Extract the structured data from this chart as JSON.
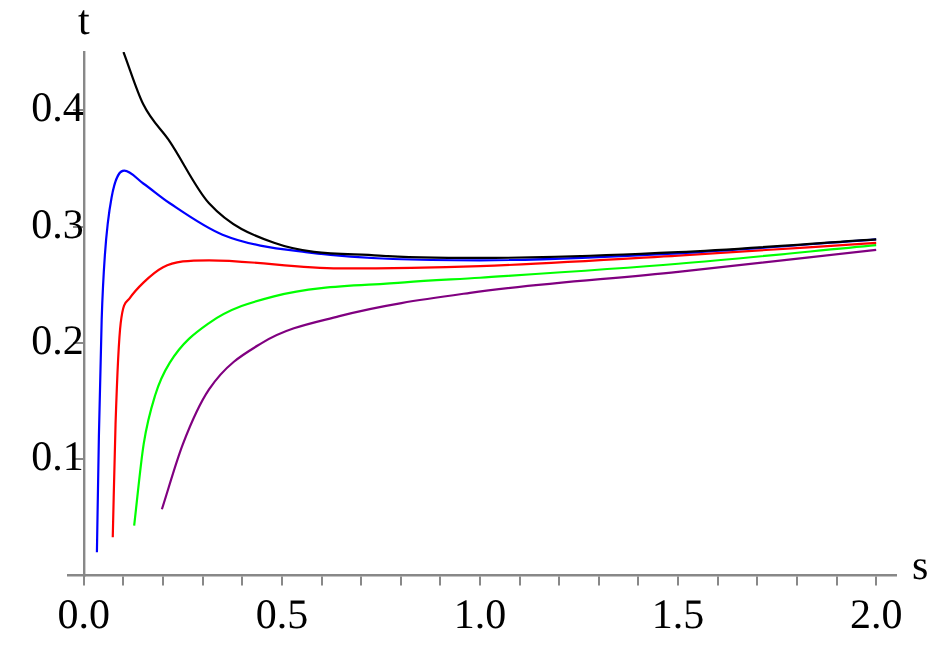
{
  "chart_data": {
    "type": "line",
    "xlabel": "s",
    "ylabel": "t",
    "xlim": [
      -0.04,
      2.05
    ],
    "ylim": [
      0,
      0.45
    ],
    "xticks": [
      {
        "value": 0,
        "label": "0.0"
      },
      {
        "value": 0.1,
        "label": null
      },
      {
        "value": 0.2,
        "label": null
      },
      {
        "value": 0.3,
        "label": null
      },
      {
        "value": 0.4,
        "label": null
      },
      {
        "value": 0.5,
        "label": "0.5"
      },
      {
        "value": 0.6,
        "label": null
      },
      {
        "value": 0.7,
        "label": null
      },
      {
        "value": 0.8,
        "label": null
      },
      {
        "value": 0.9,
        "label": null
      },
      {
        "value": 1,
        "label": "1.0"
      },
      {
        "value": 1.1,
        "label": null
      },
      {
        "value": 1.2,
        "label": null
      },
      {
        "value": 1.3,
        "label": null
      },
      {
        "value": 1.4,
        "label": null
      },
      {
        "value": 1.5,
        "label": "1.5"
      },
      {
        "value": 1.6,
        "label": null
      },
      {
        "value": 1.7,
        "label": null
      },
      {
        "value": 1.8,
        "label": null
      },
      {
        "value": 1.9,
        "label": null
      },
      {
        "value": 2,
        "label": "2.0"
      }
    ],
    "yticks": [
      0.1,
      0.2,
      0.3,
      0.4
    ],
    "grid": false,
    "legend": false,
    "marker": "none",
    "line_style": "solid",
    "series": [
      {
        "color": "#000000",
        "x": [
          0.1,
          0.15,
          0.217,
          0.316,
          0.48,
          0.745,
          1.0,
          1.5,
          2.0
        ],
        "values": [
          0.45,
          0.405,
          0.373,
          0.32,
          0.286,
          0.275,
          0.273,
          0.278,
          0.289
        ]
      },
      {
        "color": "#0000ff",
        "x": [
          0.033,
          0.038,
          0.045,
          0.053,
          0.07,
          0.102,
          0.15,
          0.217,
          0.35,
          0.56,
          1.0,
          1.5,
          2.0
        ],
        "values": [
          0.02,
          0.12,
          0.22,
          0.275,
          0.325,
          0.348,
          0.337,
          0.32,
          0.293,
          0.278,
          0.271,
          0.277,
          0.289
        ]
      },
      {
        "color": "#ff0000",
        "x": [
          0.073,
          0.08,
          0.093,
          0.115,
          0.151,
          0.2,
          0.25,
          0.316,
          0.645,
          1.0,
          1.5,
          2.0
        ],
        "values": [
          0.033,
          0.13,
          0.217,
          0.238,
          0.252,
          0.265,
          0.27,
          0.271,
          0.264,
          0.266,
          0.275,
          0.286
        ]
      },
      {
        "color": "#00ff00",
        "x": [
          0.127,
          0.151,
          0.18,
          0.217,
          0.316,
          0.48,
          0.81,
          1.0,
          1.5,
          2.0
        ],
        "values": [
          0.043,
          0.113,
          0.155,
          0.183,
          0.217,
          0.24,
          0.252,
          0.256,
          0.268,
          0.284
        ]
      },
      {
        "color": "#800080",
        "x": [
          0.197,
          0.25,
          0.316,
          0.45,
          0.645,
          0.975,
          1.5,
          2.0
        ],
        "values": [
          0.057,
          0.113,
          0.16,
          0.2,
          0.223,
          0.243,
          0.261,
          0.28
        ]
      }
    ]
  }
}
